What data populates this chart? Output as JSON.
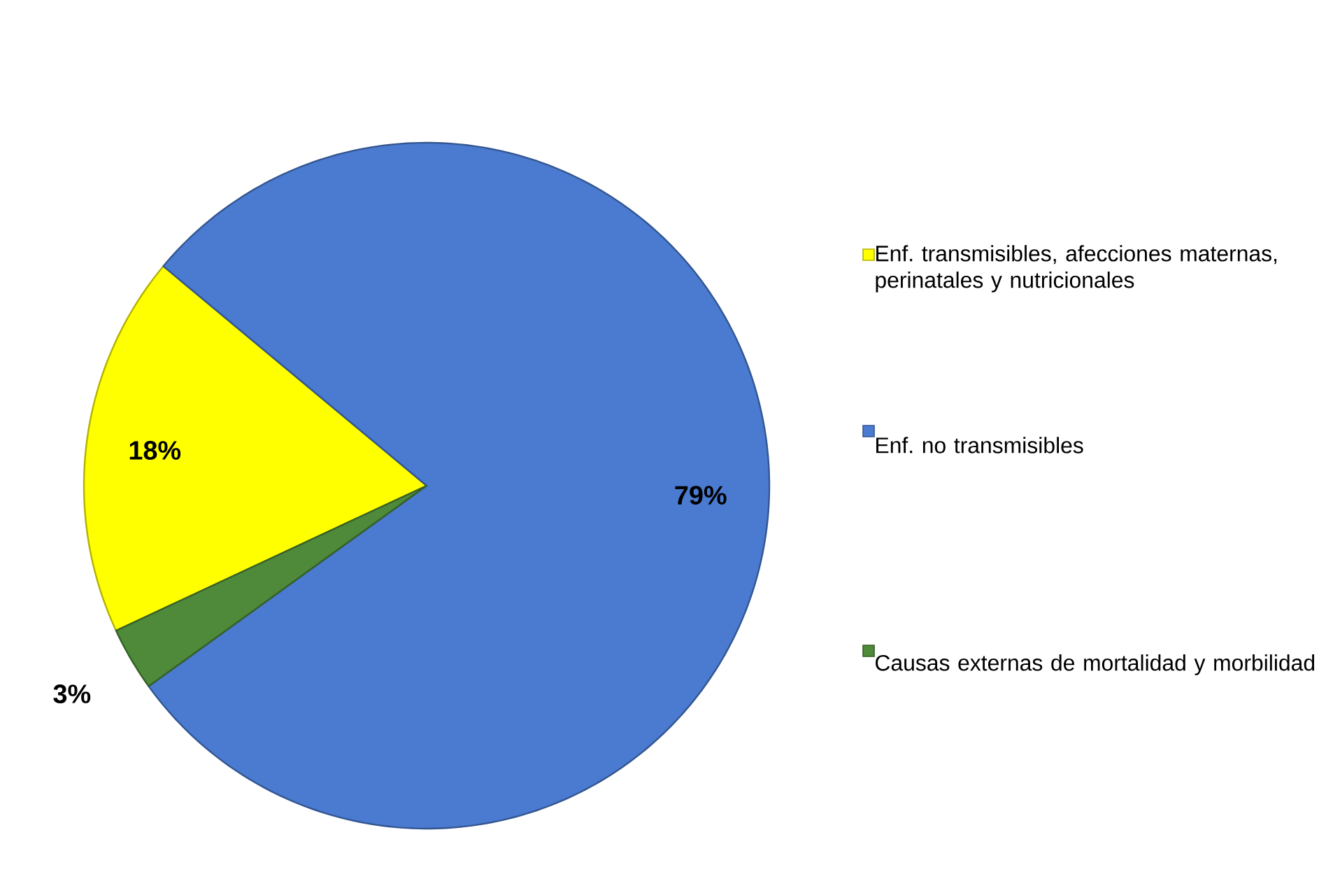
{
  "chart_data": {
    "type": "pie",
    "categories": [
      "Enf. transmisibles, afecciones maternas, perinatales y nutricionales",
      "Enf. no transmisibles",
      "Causas externas de mortalidad y morbilidad"
    ],
    "values": [
      18,
      79,
      3
    ],
    "colors": [
      "#ffff00",
      "#4a7bd0",
      "#4e8a3a"
    ],
    "value_labels": [
      "18%",
      "79%",
      "3%"
    ],
    "legend": "right"
  }
}
